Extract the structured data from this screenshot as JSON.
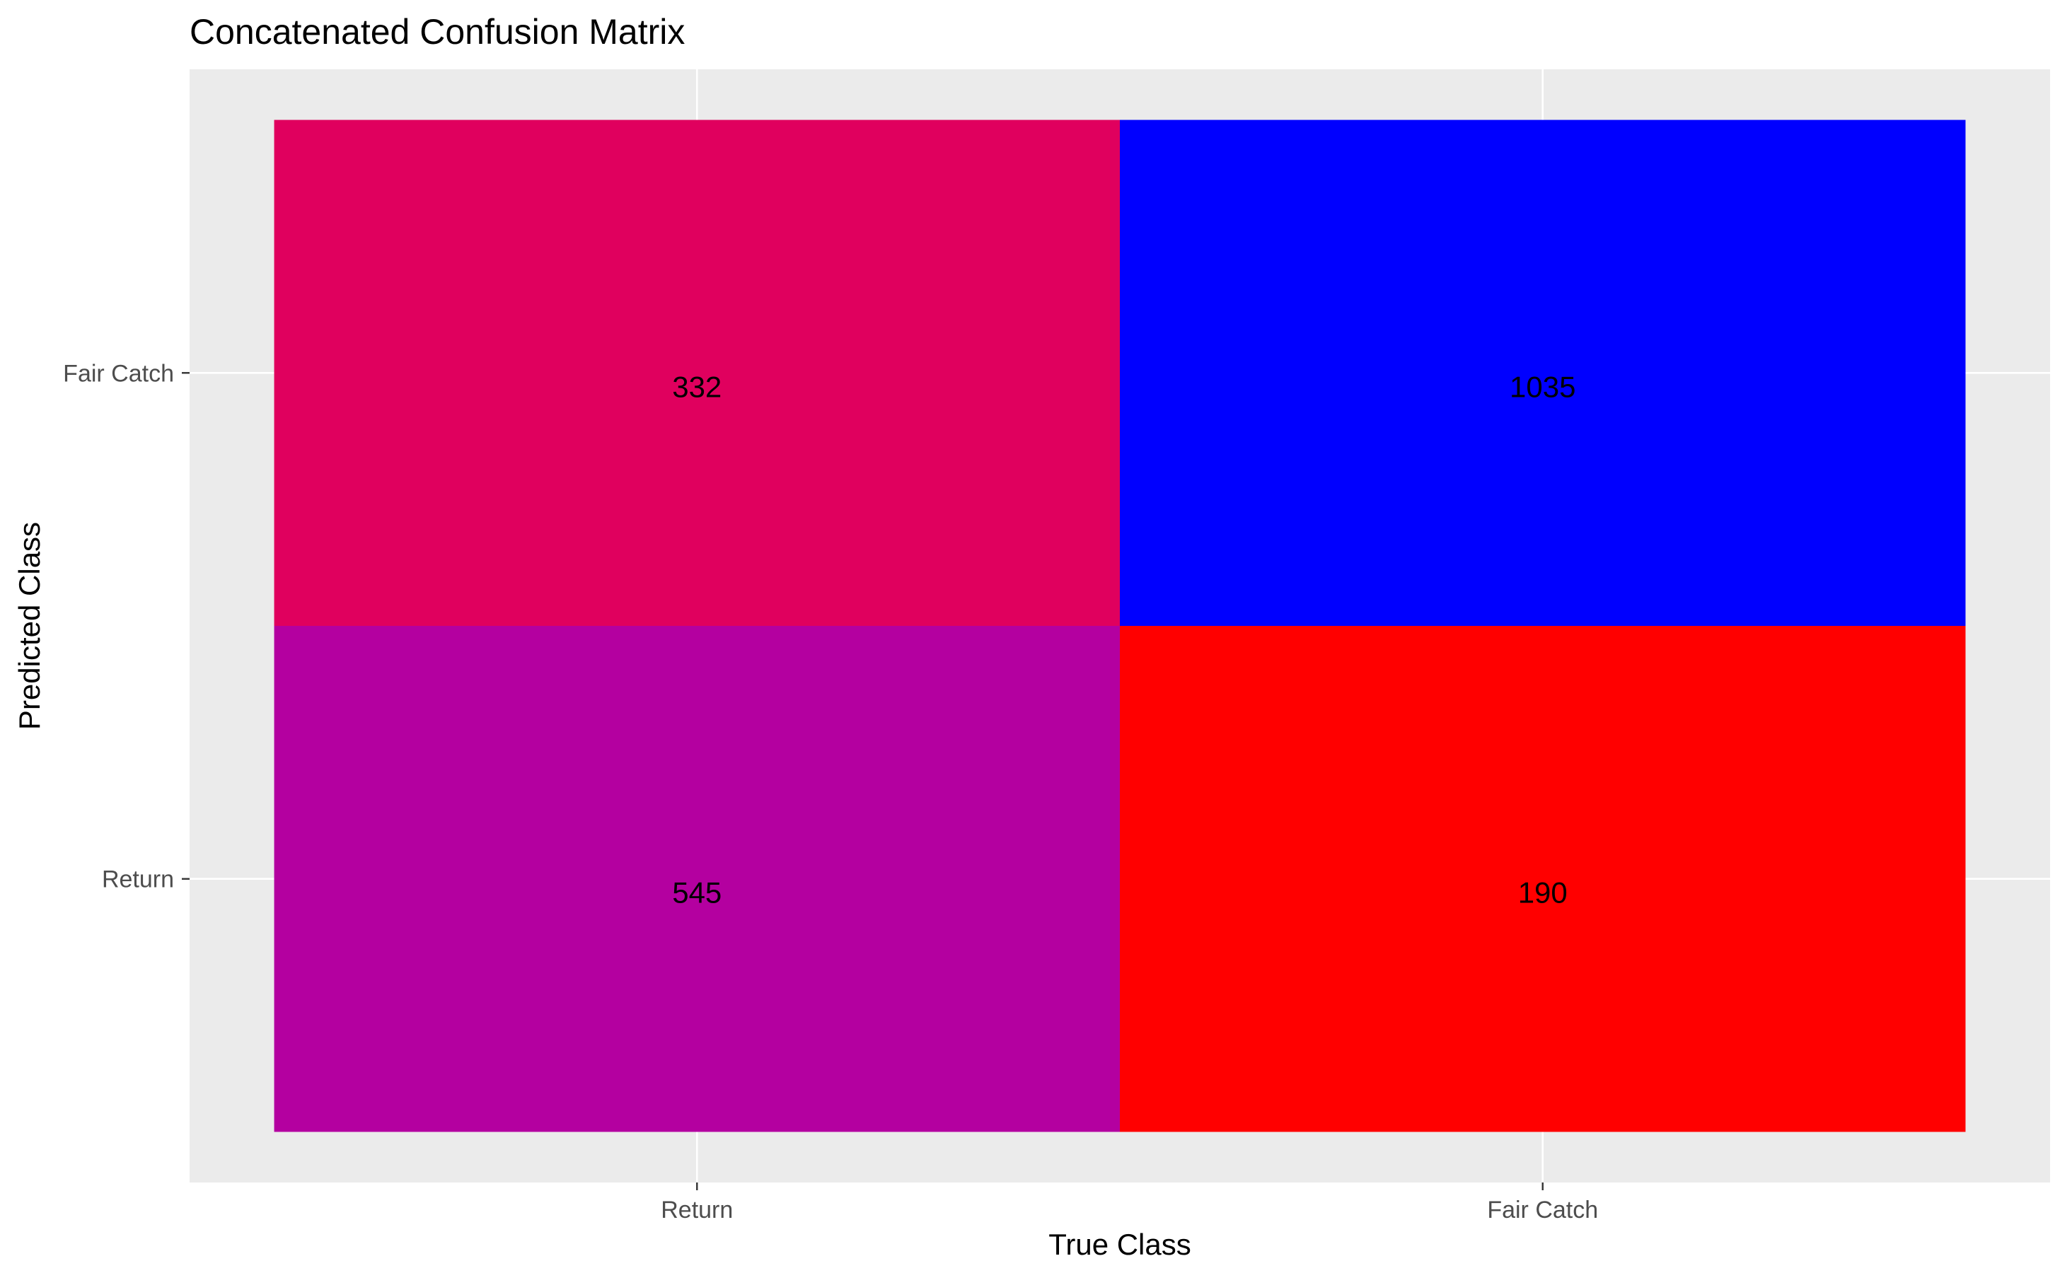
{
  "chart_data": {
    "type": "heatmap",
    "title": "Concatenated Confusion Matrix",
    "xlabel": "True Class",
    "ylabel": "Predicted Class",
    "x_categories": [
      "Return",
      "Fair Catch"
    ],
    "y_categories": [
      "Return",
      "Fair Catch"
    ],
    "cells": [
      {
        "true": "Return",
        "predicted": "Fair Catch",
        "value": 332,
        "color": "#E0005E"
      },
      {
        "true": "Fair Catch",
        "predicted": "Fair Catch",
        "value": 1035,
        "color": "#0000FF"
      },
      {
        "true": "Return",
        "predicted": "Return",
        "value": 545,
        "color": "#B400A0"
      },
      {
        "true": "Fair Catch",
        "predicted": "Return",
        "value": 190,
        "color": "#FF0000"
      }
    ],
    "panel_background": "#EBEBEB",
    "grid": true,
    "legend": "none"
  }
}
